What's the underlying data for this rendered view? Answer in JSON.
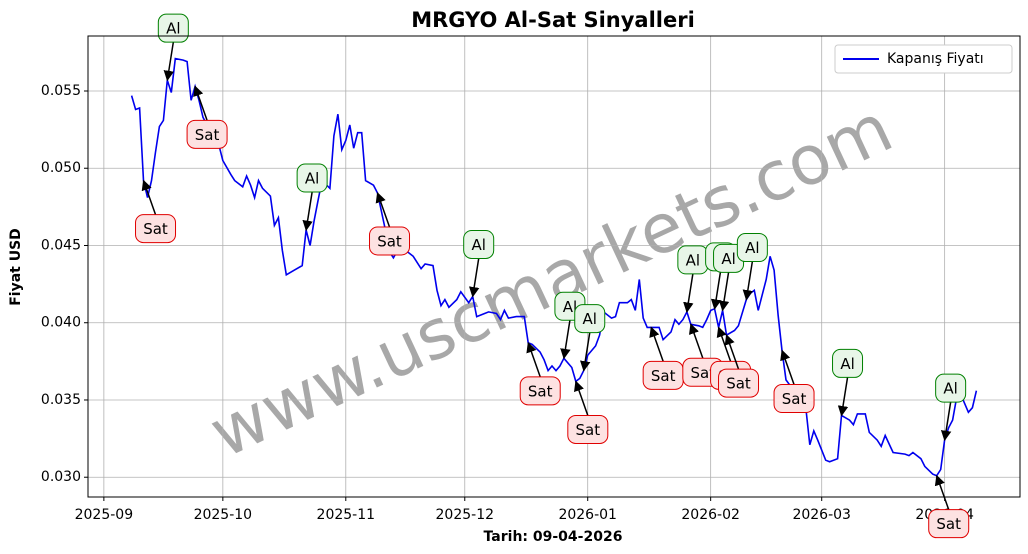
{
  "chart_data": {
    "type": "line",
    "title": "MRGYO Al-Sat Sinyalleri",
    "xlabel": "Tarih: 09-04-2026",
    "ylabel": "Fiyat USD",
    "watermark": "www.uscmarkets.com",
    "grid": true,
    "legend": "upper right",
    "xlim": [
      "2025-08-28",
      "2026-04-20"
    ],
    "xticks": [
      {
        "value": "2025-09-01",
        "label": "2025-09"
      },
      {
        "value": "2025-10-01",
        "label": "2025-10"
      },
      {
        "value": "2025-11-01",
        "label": "2025-11"
      },
      {
        "value": "2025-12-01",
        "label": "2025-12"
      },
      {
        "value": "2026-01-01",
        "label": "2026-01"
      },
      {
        "value": "2026-02-01",
        "label": "2026-02"
      },
      {
        "value": "2026-03-01",
        "label": "2026-03"
      },
      {
        "value": "2026-04-01",
        "label": "2026-04"
      }
    ],
    "ylim": [
      0.02872,
      0.05856
    ],
    "yticks": [
      {
        "value": 0.03,
        "label": "0.030"
      },
      0.035,
      {
        "value": 0.04,
        "label": "0.040"
      },
      0.045,
      {
        "value": 0.05,
        "label": "0.050"
      },
      0.055
    ],
    "x": [
      "2025-09-08",
      "2025-09-09",
      "2025-09-10",
      "2025-09-11",
      "2025-09-12",
      "2025-09-13",
      "2025-09-14",
      "2025-09-15",
      "2025-09-16",
      "2025-09-17",
      "2025-09-18",
      "2025-09-19",
      "2025-09-21",
      "2025-09-22",
      "2025-09-23",
      "2025-09-24",
      "2025-09-25",
      "2025-09-26",
      "2025-09-27",
      "2025-09-28",
      "2025-09-29",
      "2025-09-30",
      "2025-10-01",
      "2025-10-03",
      "2025-10-04",
      "2025-10-06",
      "2025-10-07",
      "2025-10-08",
      "2025-10-09",
      "2025-10-10",
      "2025-10-11",
      "2025-10-13",
      "2025-10-14",
      "2025-10-15",
      "2025-10-16",
      "2025-10-17",
      "2025-10-19",
      "2025-10-21",
      "2025-10-22",
      "2025-10-23",
      "2025-10-24",
      "2025-10-25",
      "2025-10-26",
      "2025-10-28",
      "2025-10-29",
      "2025-10-30",
      "2025-10-31",
      "2025-11-01",
      "2025-11-02",
      "2025-11-03",
      "2025-11-04",
      "2025-11-05",
      "2025-11-06",
      "2025-11-08",
      "2025-11-09",
      "2025-11-11",
      "2025-11-12",
      "2025-11-13",
      "2025-11-15",
      "2025-11-16",
      "2025-11-18",
      "2025-11-20",
      "2025-11-21",
      "2025-11-23",
      "2025-11-24",
      "2025-11-25",
      "2025-11-26",
      "2025-11-27",
      "2025-11-29",
      "2025-11-30",
      "2025-12-02",
      "2025-12-03",
      "2025-12-04",
      "2025-12-06",
      "2025-12-07",
      "2025-12-09",
      "2025-12-10",
      "2025-12-11",
      "2025-12-12",
      "2025-12-14",
      "2025-12-16",
      "2025-12-17",
      "2025-12-18",
      "2025-12-20",
      "2025-12-21",
      "2025-12-22",
      "2025-12-23",
      "2025-12-24",
      "2025-12-25",
      "2025-12-26",
      "2025-12-28",
      "2025-12-29",
      "2025-12-30",
      "2025-12-31",
      "2026-01-01",
      "2026-01-03",
      "2026-01-04",
      "2026-01-05",
      "2026-01-07",
      "2026-01-08",
      "2026-01-09",
      "2026-01-11",
      "2026-01-12",
      "2026-01-13",
      "2026-01-14",
      "2026-01-15",
      "2026-01-16",
      "2026-01-17",
      "2026-01-19",
      "2026-01-20",
      "2026-01-22",
      "2026-01-23",
      "2026-01-24",
      "2026-01-25",
      "2026-01-26",
      "2026-01-27",
      "2026-01-29",
      "2026-01-30",
      "2026-01-31",
      "2026-02-01",
      "2026-02-02",
      "2026-02-03",
      "2026-02-04",
      "2026-02-05",
      "2026-02-07",
      "2026-02-08",
      "2026-02-10",
      "2026-02-11",
      "2026-02-12",
      "2026-02-13",
      "2026-02-15",
      "2026-02-16",
      "2026-02-17",
      "2026-02-18",
      "2026-02-19",
      "2026-02-20",
      "2026-02-22",
      "2026-02-24",
      "2026-02-25",
      "2026-02-26",
      "2026-02-27",
      "2026-02-28",
      "2026-03-02",
      "2026-03-03",
      "2026-03-05",
      "2026-03-06",
      "2026-03-08",
      "2026-03-09",
      "2026-03-10",
      "2026-03-12",
      "2026-03-13",
      "2026-03-15",
      "2026-03-16",
      "2026-03-17",
      "2026-03-19",
      "2026-03-22",
      "2026-03-23",
      "2026-03-24",
      "2026-03-26",
      "2026-03-27",
      "2026-03-29",
      "2026-03-30",
      "2026-03-31",
      "2026-04-01",
      "2026-04-02",
      "2026-04-03",
      "2026-04-04",
      "2026-04-05",
      "2026-04-07",
      "2026-04-08",
      "2026-04-09"
    ],
    "series": [
      {
        "name": "Kapanış Fiyatı",
        "color": "#0000ee",
        "values": [
          0.0547,
          0.0538,
          0.0539,
          0.0492,
          0.0481,
          0.0492,
          0.051,
          0.0527,
          0.0531,
          0.0557,
          0.0549,
          0.0571,
          0.057,
          0.0569,
          0.0544,
          0.0553,
          0.0544,
          0.0533,
          0.0528,
          0.0521,
          0.0518,
          0.0515,
          0.0505,
          0.0496,
          0.0492,
          0.0488,
          0.0495,
          0.0489,
          0.0481,
          0.0492,
          0.0487,
          0.0482,
          0.0463,
          0.0468,
          0.0447,
          0.0431,
          0.0434,
          0.0437,
          0.046,
          0.045,
          0.0466,
          0.0479,
          0.0492,
          0.0487,
          0.0521,
          0.0535,
          0.0512,
          0.0518,
          0.0528,
          0.0513,
          0.0523,
          0.0523,
          0.0492,
          0.0489,
          0.0484,
          0.046,
          0.0446,
          0.0442,
          0.0451,
          0.0447,
          0.0443,
          0.0435,
          0.0438,
          0.0437,
          0.0421,
          0.0411,
          0.0415,
          0.041,
          0.0415,
          0.042,
          0.0413,
          0.0417,
          0.0404,
          0.0406,
          0.0407,
          0.0406,
          0.0402,
          0.0408,
          0.0403,
          0.0404,
          0.0404,
          0.0387,
          0.0386,
          0.0381,
          0.0376,
          0.0369,
          0.0372,
          0.0369,
          0.0372,
          0.0377,
          0.0371,
          0.0362,
          0.0364,
          0.0369,
          0.0379,
          0.0385,
          0.0392,
          0.0407,
          0.0403,
          0.0404,
          0.0413,
          0.0413,
          0.0415,
          0.0408,
          0.0428,
          0.0403,
          0.0397,
          0.0397,
          0.0397,
          0.0389,
          0.0394,
          0.0402,
          0.0399,
          0.0402,
          0.0407,
          0.0399,
          0.0398,
          0.0397,
          0.0402,
          0.0408,
          0.0409,
          0.0397,
          0.0408,
          0.0392,
          0.0395,
          0.0398,
          0.0415,
          0.0419,
          0.0421,
          0.0408,
          0.0428,
          0.0443,
          0.0434,
          0.0405,
          0.0382,
          0.0363,
          0.0356,
          0.035,
          0.0345,
          0.0321,
          0.033,
          0.0324,
          0.0311,
          0.031,
          0.0312,
          0.034,
          0.0337,
          0.0334,
          0.0341,
          0.0341,
          0.0329,
          0.0324,
          0.032,
          0.0327,
          0.0316,
          0.0315,
          0.0314,
          0.0316,
          0.0312,
          0.0307,
          0.0302,
          0.0301,
          0.0305,
          0.0324,
          0.0332,
          0.0337,
          0.0351,
          0.0354,
          0.0342,
          0.0345,
          0.0356
        ]
      }
    ],
    "annotations": [
      {
        "text": "Al",
        "x": "2025-09-17",
        "y": 0.0557
      },
      {
        "text": "Sat",
        "x": "2025-09-24",
        "y": 0.0553
      },
      {
        "text": "Sat",
        "x": "2025-09-11",
        "y": 0.0492
      },
      {
        "text": "Al",
        "x": "2025-10-22",
        "y": 0.046
      },
      {
        "text": "Sat",
        "x": "2025-11-09",
        "y": 0.0484
      },
      {
        "text": "Al",
        "x": "2025-12-03",
        "y": 0.0417
      },
      {
        "text": "Sat",
        "x": "2025-12-17",
        "y": 0.0387
      },
      {
        "text": "Al",
        "x": "2025-12-26",
        "y": 0.0377
      },
      {
        "text": "Sat",
        "x": "2025-12-29",
        "y": 0.0362
      },
      {
        "text": "Al",
        "x": "2025-12-31",
        "y": 0.0369
      },
      {
        "text": "Sat",
        "x": "2026-01-17",
        "y": 0.0397
      },
      {
        "text": "Al",
        "x": "2026-01-26",
        "y": 0.0407
      },
      {
        "text": "Sat",
        "x": "2026-01-27",
        "y": 0.0399
      },
      {
        "text": "Al",
        "x": "2026-02-02",
        "y": 0.0409
      },
      {
        "text": "Sat",
        "x": "2026-02-03",
        "y": 0.0397
      },
      {
        "text": "Al",
        "x": "2026-02-04",
        "y": 0.0408
      },
      {
        "text": "Sat",
        "x": "2026-02-05",
        "y": 0.0392
      },
      {
        "text": "Al",
        "x": "2026-02-10",
        "y": 0.0415
      },
      {
        "text": "Sat",
        "x": "2026-02-19",
        "y": 0.0382
      },
      {
        "text": "Al",
        "x": "2026-03-06",
        "y": 0.034
      },
      {
        "text": "Sat",
        "x": "2026-03-30",
        "y": 0.0301
      },
      {
        "text": "Al",
        "x": "2026-04-01",
        "y": 0.0324
      }
    ]
  }
}
